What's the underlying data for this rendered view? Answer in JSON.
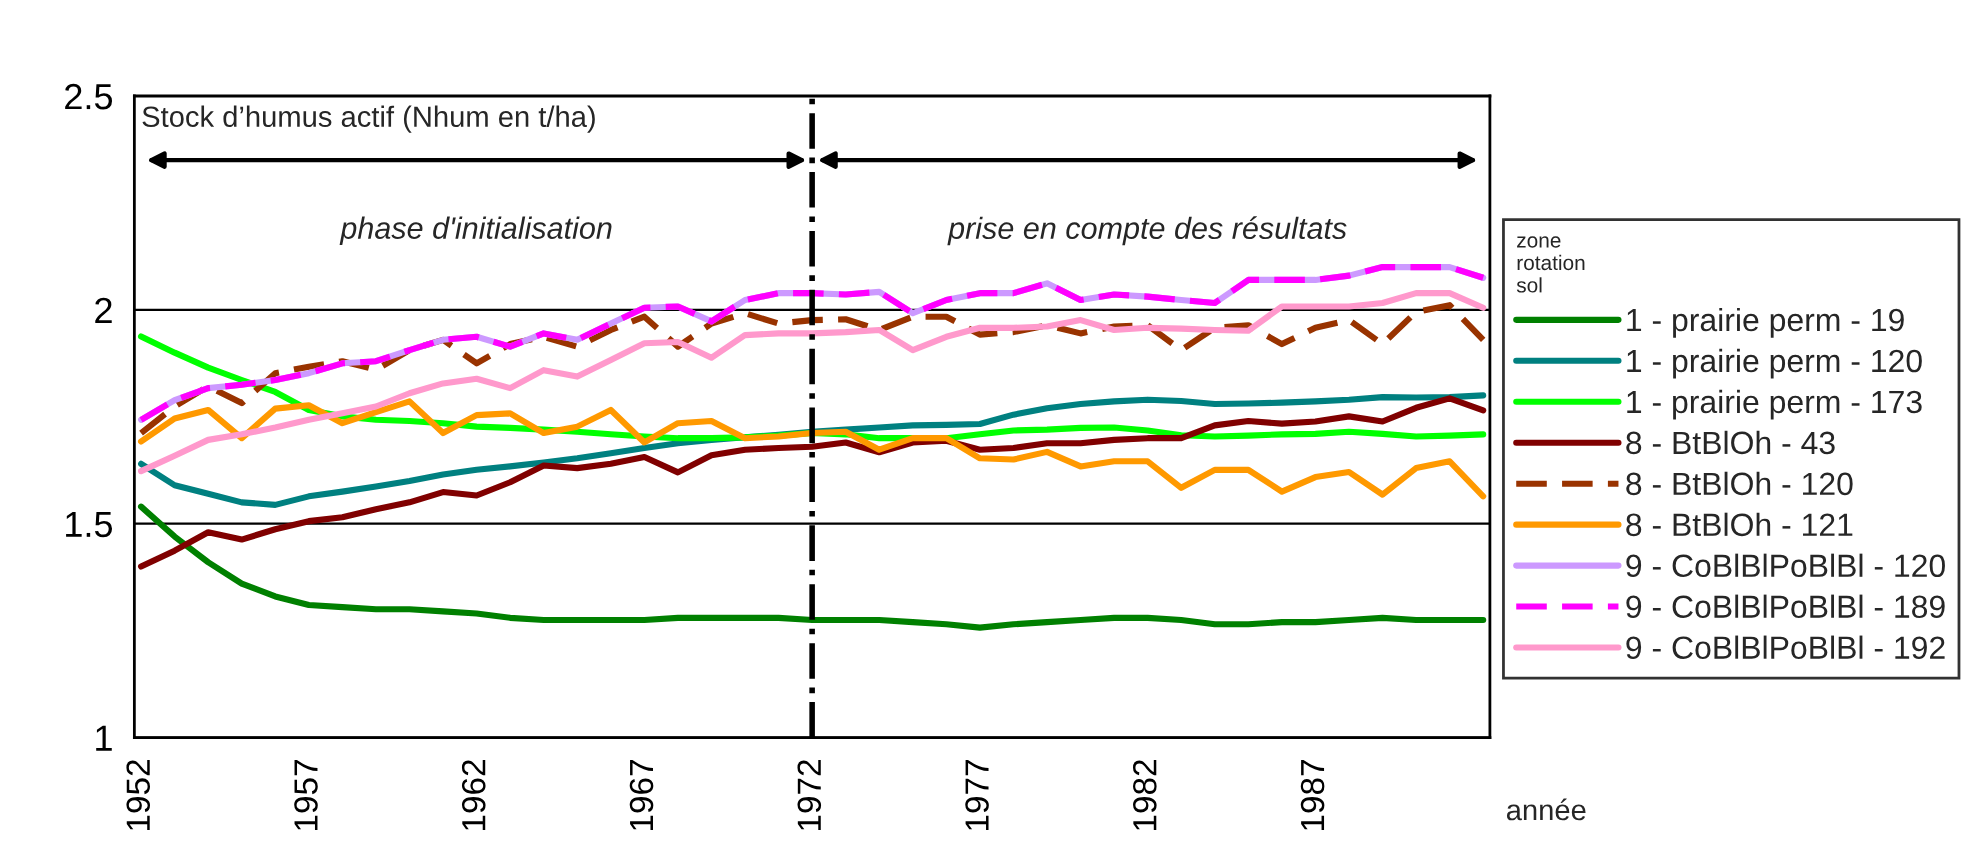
{
  "chart_data": {
    "type": "line",
    "title": "Stock d’humus actif (Nhum en t/ha)",
    "xlabel": "année",
    "legend_title": "zone\nrotation\nsol",
    "legend": "right",
    "grid": "y",
    "marker": "none",
    "x": [
      1952,
      1953,
      1954,
      1955,
      1956,
      1957,
      1958,
      1959,
      1960,
      1961,
      1962,
      1963,
      1964,
      1965,
      1966,
      1967,
      1968,
      1969,
      1970,
      1971,
      1972,
      1973,
      1974,
      1975,
      1976,
      1977,
      1978,
      1979,
      1980,
      1981,
      1982,
      1983,
      1984,
      1985,
      1986,
      1987,
      1988,
      1989,
      1990,
      1991,
      1992
    ],
    "xlim": [
      1951.8,
      1992.2
    ],
    "xticks": [
      1952,
      1957,
      1962,
      1967,
      1972,
      1977,
      1982,
      1987
    ],
    "ylim": [
      1,
      2.5
    ],
    "yticks": [
      1,
      1.5,
      2,
      2.5
    ],
    "ref_lines": [
      {
        "axis": "x",
        "value": 1972,
        "color": "#000000",
        "line_style": "dashdot"
      }
    ],
    "annotations": [
      "phase d'initialisation",
      "prise en compte des résultats"
    ],
    "series": [
      {
        "name": "1 - prairie perm - 19",
        "color": "#008000",
        "line_style": "solid",
        "values": [
          1.54,
          1.47,
          1.41,
          1.36,
          1.33,
          1.31,
          1.305,
          1.3,
          1.3,
          1.295,
          1.29,
          1.28,
          1.275,
          1.275,
          1.275,
          1.275,
          1.28,
          1.28,
          1.28,
          1.28,
          1.275,
          1.275,
          1.275,
          1.27,
          1.265,
          1.257,
          1.265,
          1.27,
          1.275,
          1.28,
          1.28,
          1.275,
          1.265,
          1.265,
          1.27,
          1.27,
          1.275,
          1.28,
          1.275,
          1.275,
          1.275
        ]
      },
      {
        "name": "1 - prairie perm - 120",
        "color": "#008080",
        "line_style": "solid",
        "values": [
          1.64,
          1.59,
          1.57,
          1.55,
          1.544,
          1.564,
          1.575,
          1.587,
          1.6,
          1.615,
          1.626,
          1.634,
          1.643,
          1.653,
          1.665,
          1.677,
          1.688,
          1.696,
          1.702,
          1.708,
          1.715,
          1.72,
          1.725,
          1.73,
          1.731,
          1.733,
          1.755,
          1.77,
          1.78,
          1.786,
          1.79,
          1.787,
          1.78,
          1.781,
          1.783,
          1.786,
          1.79,
          1.796,
          1.795,
          1.796,
          1.8
        ]
      },
      {
        "name": "1 - prairie perm - 173",
        "color": "#00ff00",
        "line_style": "solid",
        "values": [
          1.938,
          1.9,
          1.865,
          1.836,
          1.808,
          1.766,
          1.751,
          1.743,
          1.74,
          1.735,
          1.727,
          1.724,
          1.72,
          1.715,
          1.709,
          1.704,
          1.7,
          1.7,
          1.702,
          1.706,
          1.712,
          1.709,
          1.7,
          1.7,
          1.7,
          1.709,
          1.718,
          1.72,
          1.724,
          1.725,
          1.718,
          1.707,
          1.704,
          1.706,
          1.709,
          1.71,
          1.715,
          1.71,
          1.704,
          1.706,
          1.709
        ]
      },
      {
        "name": "8 - BtBlOh - 43",
        "color": "#800000",
        "line_style": "solid",
        "values": [
          1.4,
          1.437,
          1.48,
          1.463,
          1.487,
          1.506,
          1.515,
          1.534,
          1.55,
          1.574,
          1.566,
          1.597,
          1.636,
          1.63,
          1.64,
          1.656,
          1.62,
          1.66,
          1.673,
          1.677,
          1.68,
          1.69,
          1.667,
          1.69,
          1.694,
          1.673,
          1.677,
          1.688,
          1.688,
          1.696,
          1.7,
          1.7,
          1.73,
          1.74,
          1.734,
          1.739,
          1.751,
          1.739,
          1.771,
          1.793,
          1.765
        ]
      },
      {
        "name": "8 - BtBlOh - 120",
        "color": "#993300",
        "line_style": "dashed",
        "values": [
          1.712,
          1.774,
          1.821,
          1.782,
          1.852,
          1.867,
          1.88,
          1.86,
          1.906,
          1.93,
          1.875,
          1.92,
          1.937,
          1.914,
          1.953,
          1.984,
          1.914,
          1.968,
          1.992,
          1.968,
          1.976,
          1.978,
          1.953,
          1.984,
          1.984,
          1.942,
          1.948,
          1.964,
          1.945,
          1.961,
          1.964,
          1.906,
          1.958,
          1.964,
          1.92,
          1.958,
          1.976,
          1.92,
          1.995,
          2.011,
          1.93
        ]
      },
      {
        "name": "8 - BtBlOh - 121",
        "color": "#ff9900",
        "line_style": "solid",
        "values": [
          1.692,
          1.746,
          1.766,
          1.7,
          1.769,
          1.777,
          1.735,
          1.761,
          1.786,
          1.712,
          1.754,
          1.758,
          1.712,
          1.727,
          1.766,
          1.69,
          1.735,
          1.74,
          1.7,
          1.704,
          1.712,
          1.715,
          1.673,
          1.7,
          1.7,
          1.653,
          1.65,
          1.668,
          1.634,
          1.646,
          1.646,
          1.584,
          1.626,
          1.626,
          1.575,
          1.609,
          1.621,
          1.568,
          1.63,
          1.646,
          1.564
        ]
      },
      {
        "name": "9 - CoBlBlPoBlBl - 120",
        "color": "#cc99ff",
        "line_style": "solid",
        "values": [
          1.743,
          1.789,
          1.817,
          1.825,
          1.836,
          1.852,
          1.875,
          1.88,
          1.906,
          1.93,
          1.937,
          1.914,
          1.945,
          1.93,
          1.968,
          2.005,
          2.008,
          1.973,
          2.023,
          2.039,
          2.039,
          2.036,
          2.042,
          1.992,
          2.023,
          2.039,
          2.039,
          2.062,
          2.023,
          2.036,
          2.031,
          2.023,
          2.016,
          2.07,
          2.07,
          2.07,
          2.08,
          2.1,
          2.1,
          2.1,
          2.075
        ]
      },
      {
        "name": "9 - CoBlBlPoBlBl - 189",
        "color": "#ff00ff",
        "line_style": "dashed",
        "values": [
          1.743,
          1.789,
          1.817,
          1.825,
          1.836,
          1.852,
          1.875,
          1.88,
          1.906,
          1.93,
          1.937,
          1.914,
          1.945,
          1.93,
          1.968,
          2.005,
          2.008,
          1.973,
          2.023,
          2.039,
          2.039,
          2.036,
          2.042,
          1.992,
          2.023,
          2.039,
          2.039,
          2.062,
          2.023,
          2.036,
          2.031,
          2.023,
          2.016,
          2.07,
          2.07,
          2.07,
          2.08,
          2.1,
          2.1,
          2.1,
          2.075
        ]
      },
      {
        "name": "9 - CoBlBlPoBlBl - 192",
        "color": "#ff99cc",
        "line_style": "solid",
        "values": [
          1.623,
          1.659,
          1.696,
          1.709,
          1.725,
          1.743,
          1.758,
          1.774,
          1.805,
          1.828,
          1.839,
          1.817,
          1.859,
          1.844,
          1.883,
          1.922,
          1.925,
          1.888,
          1.941,
          1.945,
          1.945,
          1.948,
          1.953,
          1.906,
          1.937,
          1.958,
          1.958,
          1.961,
          1.976,
          1.953,
          1.958,
          1.956,
          1.953,
          1.951,
          2.008,
          2.008,
          2.008,
          2.016,
          2.039,
          2.039,
          2.005
        ]
      }
    ]
  }
}
